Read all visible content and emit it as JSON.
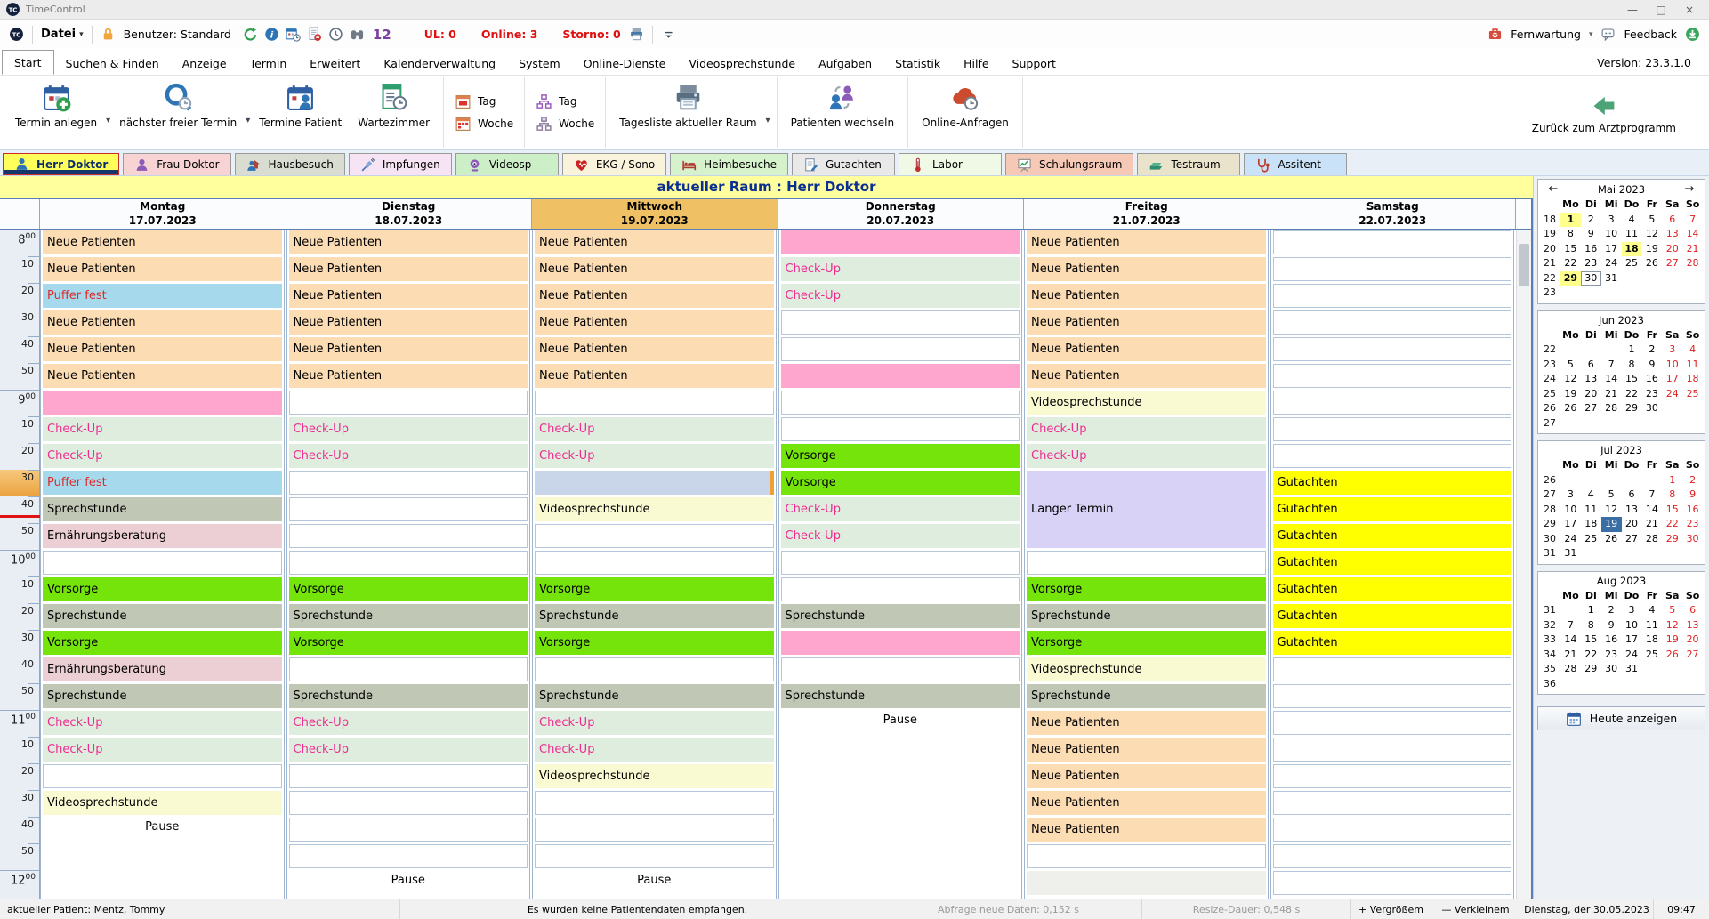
{
  "window": {
    "title": "TimeControl",
    "controls": [
      {
        "name": "minimize",
        "glyph": "—"
      },
      {
        "name": "maximize",
        "glyph": "□"
      },
      {
        "name": "close",
        "glyph": "×"
      }
    ]
  },
  "toolbar": {
    "file_menu": "Datei",
    "user": "Benutzer: Standard",
    "icons": [
      {
        "name": "refresh-icon"
      },
      {
        "name": "info-icon"
      },
      {
        "name": "calendar-clock-icon"
      },
      {
        "name": "document-cancel-icon"
      },
      {
        "name": "clock-icon"
      },
      {
        "name": "binoculars-icon"
      }
    ],
    "twelve": "12",
    "counters": [
      {
        "label": "UL: 0"
      },
      {
        "label": "Online: 3"
      },
      {
        "label": "Storno: 0"
      }
    ],
    "fernwartung": "Fernwartung",
    "feedback": "Feedback"
  },
  "menu": {
    "items": [
      {
        "label": "Start",
        "active": true
      },
      {
        "label": "Suchen & Finden"
      },
      {
        "label": "Anzeige"
      },
      {
        "label": "Termin"
      },
      {
        "label": "Erweitert"
      },
      {
        "label": "Kalenderverwaltung"
      },
      {
        "label": "System"
      },
      {
        "label": "Online-Dienste"
      },
      {
        "label": "Videosprechstunde"
      },
      {
        "label": "Aufgaben"
      },
      {
        "label": "Statistik"
      },
      {
        "label": "Hilfe"
      },
      {
        "label": "Support"
      }
    ],
    "version": "Version: 23.3.1.0"
  },
  "ribbon": {
    "groups": [
      {
        "kind": "big",
        "buttons": [
          {
            "label": "Termin anlegen",
            "icon": "calendar-plus-icon",
            "chevron": true
          },
          {
            "label": "nächster freier Termin",
            "icon": "search-clock-icon",
            "chevron": true
          },
          {
            "label": "Termine Patient",
            "icon": "calendar-person-icon"
          },
          {
            "label": "Wartezimmer",
            "icon": "list-clock-icon"
          }
        ]
      },
      {
        "kind": "small",
        "buttons": [
          {
            "label": "Tag",
            "icon": "cal-red-day-icon"
          },
          {
            "label": "Woche",
            "icon": "cal-red-week-icon"
          }
        ]
      },
      {
        "kind": "small",
        "buttons": [
          {
            "label": "Tag",
            "icon": "org-purple-icon"
          },
          {
            "label": "Woche",
            "icon": "org-gray-icon"
          }
        ]
      },
      {
        "kind": "big",
        "buttons": [
          {
            "label": "Tagesliste aktueller Raum",
            "icon": "printer-big-icon",
            "chevron": true
          }
        ]
      },
      {
        "kind": "big",
        "buttons": [
          {
            "label": "Patienten wechseln",
            "icon": "people-swap-icon"
          }
        ]
      },
      {
        "kind": "big",
        "buttons": [
          {
            "label": "Online-Anfragen",
            "icon": "cloud-red-icon"
          }
        ]
      }
    ],
    "back_button": {
      "label": "Zurück zum Arztprogramm",
      "icon": "arrow-left-green-icon"
    }
  },
  "room_tabs": [
    {
      "label": "Herr Doktor",
      "icon": "person-blue-icon",
      "bg": "#FFFF5C",
      "active": true
    },
    {
      "label": "Frau Doktor",
      "icon": "person-purple-icon",
      "bg": "#F7D3D3"
    },
    {
      "label": "Hausbesuch",
      "icon": "house-person-icon",
      "bg": "#D9DDD1"
    },
    {
      "label": "Impfungen",
      "icon": "syringe-icon",
      "bg": "#F6E3F3"
    },
    {
      "label": "Videosp",
      "icon": "webcam-icon",
      "bg": "#CDEFC8"
    },
    {
      "label": "EKG / Sono",
      "icon": "heart-pulse-icon",
      "bg": "#FAF3DC"
    },
    {
      "label": "Heimbesuche",
      "icon": "bed-icon",
      "bg": "#D6F2CC"
    },
    {
      "label": "Gutachten",
      "icon": "document-pen-icon",
      "bg": "#E9E9E9"
    },
    {
      "label": "Labor",
      "icon": "thermometer-icon",
      "bg": "#EFF9E6"
    },
    {
      "label": "Schulungsraum",
      "icon": "presentation-board-icon",
      "bg": "#F6C9B6"
    },
    {
      "label": "Testraum",
      "icon": "scanner-icon",
      "bg": "#EAE3CB"
    },
    {
      "label": "Assitent",
      "icon": "stethoscope-icon",
      "bg": "#C9E2F8"
    }
  ],
  "banner": "aktueller Raum : Herr Doktor",
  "schedule": {
    "times": [
      {
        "hour": "8",
        "minute": "00"
      },
      {
        "minute": "10"
      },
      {
        "minute": "20"
      },
      {
        "minute": "30"
      },
      {
        "minute": "40"
      },
      {
        "minute": "50"
      },
      {
        "hour": "9",
        "minute": "00"
      },
      {
        "minute": "10"
      },
      {
        "minute": "20"
      },
      {
        "minute": "30",
        "highlight": true
      },
      {
        "minute": "40"
      },
      {
        "minute": "50"
      },
      {
        "hour": "10",
        "minute": "00"
      },
      {
        "minute": "10"
      },
      {
        "minute": "20"
      },
      {
        "minute": "30"
      },
      {
        "minute": "40"
      },
      {
        "minute": "50"
      },
      {
        "hour": "11",
        "minute": "00"
      },
      {
        "minute": "10"
      },
      {
        "minute": "20"
      },
      {
        "minute": "30"
      },
      {
        "minute": "40"
      },
      {
        "minute": "50"
      },
      {
        "hour": "12",
        "minute": "00"
      }
    ],
    "current_time_line": {
      "row": 10,
      "fraction": 0.7
    },
    "appointment_types": {
      "neue": {
        "label": "Neue Patienten",
        "bg": "#FBDCB3",
        "text": "#000000"
      },
      "puffer": {
        "label": "Puffer fest",
        "bg": "#A6D9EC",
        "text": "#DD2A2A"
      },
      "checkup": {
        "label": "Check-Up",
        "bg": "#DFEDDF",
        "text": "#EE2C90"
      },
      "sprech": {
        "label": "Sprechstunde",
        "bg": "#C1C7B5",
        "text": "#000000"
      },
      "ernaehrung": {
        "label": "Ernährungsberatung",
        "bg": "#ECCFD4",
        "text": "#000000"
      },
      "vorsorge": {
        "label": "Vorsorge",
        "bg": "#74E40B",
        "text": "#000000"
      },
      "video": {
        "label": "Videosprechstunde",
        "bg": "#FAFAD2",
        "text": "#000000"
      },
      "gutachten": {
        "label": "Gutachten",
        "bg": "#FFFF00",
        "text": "#000000"
      },
      "langer": {
        "label": "Langer Termin",
        "bg": "#D8D2F6",
        "text": "#000000"
      },
      "pink": {
        "label": "",
        "bg": "#FFA6CF",
        "text": "#000000"
      },
      "selected": {
        "label": "",
        "bg": "#C9D5E9",
        "text": "#000000"
      },
      "grayempty": {
        "label": "",
        "bg": "#EFEFEC",
        "text": "#000000"
      },
      "pause": {
        "label": "Pause",
        "bg": "#FFFFFF",
        "text": "#000000"
      },
      "empty": {
        "label": "",
        "bg": "#FFFFFF",
        "text": "#000000"
      }
    },
    "days": [
      {
        "name": "Montag",
        "date": "17.07.2023",
        "slots": [
          "neue",
          "neue",
          "puffer",
          "neue",
          "neue",
          "neue",
          "pink",
          "checkup",
          "checkup",
          "puffer",
          "sprech",
          "ernaehrung",
          "empty",
          "vorsorge",
          "sprech",
          "vorsorge",
          "ernaehrung",
          "sprech",
          "checkup",
          "checkup",
          "empty",
          "video",
          {
            "t": "pause",
            "span": 3
          }
        ]
      },
      {
        "name": "Dienstag",
        "date": "18.07.2023",
        "slots": [
          "neue",
          "neue",
          "neue",
          "neue",
          "neue",
          "neue",
          "empty",
          "checkup",
          "checkup",
          "empty",
          "empty",
          "empty",
          "empty",
          "vorsorge",
          "sprech",
          "vorsorge",
          "empty",
          "sprech",
          "checkup",
          "checkup",
          "empty",
          "empty",
          "empty",
          "empty",
          "pause"
        ]
      },
      {
        "name": "Mittwoch",
        "date": "19.07.2023",
        "highlight": true,
        "slots": [
          "neue",
          "neue",
          "neue",
          "neue",
          "neue",
          "neue",
          "empty",
          "checkup",
          "checkup",
          "selected",
          "video",
          "empty",
          "empty",
          "vorsorge",
          "sprech",
          "vorsorge",
          "empty",
          "sprech",
          "checkup",
          "checkup",
          "video",
          "empty",
          "empty",
          "empty",
          "pause"
        ]
      },
      {
        "name": "Donnerstag",
        "date": "20.07.2023",
        "slots": [
          "pink",
          "checkup",
          "checkup",
          "empty",
          "empty",
          "pink",
          "empty",
          "empty",
          "vorsorge",
          "vorsorge",
          "checkup",
          "checkup",
          "empty",
          "empty",
          "sprech",
          "pink",
          "empty",
          "sprech",
          {
            "t": "pause",
            "span": 7
          }
        ]
      },
      {
        "name": "Freitag",
        "date": "21.07.2023",
        "slots": [
          "neue",
          "neue",
          "neue",
          "neue",
          "neue",
          "neue",
          "video",
          "checkup",
          "checkup",
          {
            "t": "langer",
            "span": 3
          },
          "empty",
          "vorsorge",
          "sprech",
          "vorsorge",
          "video",
          "sprech",
          "neue",
          "neue",
          "neue",
          "neue",
          "neue",
          "empty",
          "grayempty"
        ]
      },
      {
        "name": "Samstag",
        "date": "22.07.2023",
        "slots": [
          "empty",
          "empty",
          "empty",
          "empty",
          "empty",
          "empty",
          "empty",
          "empty",
          "empty",
          "gutachten",
          "gutachten",
          "gutachten",
          "gutachten",
          "gutachten",
          "gutachten",
          "gutachten",
          "empty",
          "empty",
          "empty",
          "empty",
          "empty",
          "empty",
          "empty",
          "empty",
          "empty"
        ]
      }
    ]
  },
  "minicalendars": [
    {
      "title": "Mai 2023",
      "nav": true,
      "day_headers": [
        "Mo",
        "Di",
        "Mi",
        "Do",
        "Fr",
        "Sa",
        "So"
      ],
      "weeks": [
        {
          "num": "18",
          "days": [
            "1h",
            "2",
            "3",
            "4",
            "5",
            "6w",
            "7w"
          ]
        },
        {
          "num": "19",
          "days": [
            "8",
            "9",
            "10",
            "11",
            "12",
            "13w",
            "14w"
          ]
        },
        {
          "num": "20",
          "days": [
            "15",
            "16",
            "17",
            "18h",
            "19",
            "20w",
            "21w"
          ]
        },
        {
          "num": "21",
          "days": [
            "22",
            "23",
            "24",
            "25",
            "26",
            "27w",
            "28w"
          ]
        },
        {
          "num": "22",
          "days": [
            "29h",
            "30t",
            "31",
            "",
            "",
            "",
            ""
          ]
        },
        {
          "num": "23",
          "days": [
            "",
            "",
            "",
            "",
            "",
            "",
            ""
          ]
        }
      ]
    },
    {
      "title": "Jun 2023",
      "nav": false,
      "day_headers": [
        "Mo",
        "Di",
        "Mi",
        "Do",
        "Fr",
        "Sa",
        "So"
      ],
      "weeks": [
        {
          "num": "22",
          "days": [
            "",
            "",
            "",
            "1",
            "2",
            "3w",
            "4w"
          ]
        },
        {
          "num": "23",
          "days": [
            "5",
            "6",
            "7",
            "8",
            "9",
            "10w",
            "11w"
          ]
        },
        {
          "num": "24",
          "days": [
            "12",
            "13",
            "14",
            "15",
            "16",
            "17w",
            "18w"
          ]
        },
        {
          "num": "25",
          "days": [
            "19",
            "20",
            "21",
            "22",
            "23",
            "24w",
            "25w"
          ]
        },
        {
          "num": "26",
          "days": [
            "26",
            "27",
            "28",
            "29",
            "30",
            "",
            ""
          ]
        },
        {
          "num": "27",
          "days": [
            "",
            "",
            "",
            "",
            "",
            "",
            ""
          ]
        }
      ]
    },
    {
      "title": "Jul 2023",
      "nav": false,
      "day_headers": [
        "Mo",
        "Di",
        "Mi",
        "Do",
        "Fr",
        "Sa",
        "So"
      ],
      "weeks": [
        {
          "num": "26",
          "days": [
            "",
            "",
            "",
            "",
            "",
            "1w",
            "2w"
          ]
        },
        {
          "num": "27",
          "days": [
            "3",
            "4",
            "5",
            "6",
            "7",
            "8w",
            "9w"
          ]
        },
        {
          "num": "28",
          "days": [
            "10",
            "11",
            "12",
            "13",
            "14",
            "15w",
            "16w"
          ]
        },
        {
          "num": "29",
          "days": [
            "17",
            "18",
            "19s",
            "20",
            "21",
            "22w",
            "23w"
          ]
        },
        {
          "num": "30",
          "days": [
            "24",
            "25",
            "26",
            "27",
            "28",
            "29w",
            "30w"
          ]
        },
        {
          "num": "31",
          "days": [
            "31",
            "",
            "",
            "",
            "",
            "",
            ""
          ]
        }
      ]
    },
    {
      "title": "Aug 2023",
      "nav": false,
      "day_headers": [
        "Mo",
        "Di",
        "Mi",
        "Do",
        "Fr",
        "Sa",
        "So"
      ],
      "weeks": [
        {
          "num": "31",
          "days": [
            "",
            "1",
            "2",
            "3",
            "4",
            "5w",
            "6w"
          ]
        },
        {
          "num": "32",
          "days": [
            "7",
            "8",
            "9",
            "10",
            "11",
            "12w",
            "13w"
          ]
        },
        {
          "num": "33",
          "days": [
            "14",
            "15",
            "16",
            "17",
            "18",
            "19w",
            "20w"
          ]
        },
        {
          "num": "34",
          "days": [
            "21",
            "22",
            "23",
            "24",
            "25",
            "26w",
            "27w"
          ]
        },
        {
          "num": "35",
          "days": [
            "28",
            "29",
            "30",
            "31",
            "",
            "",
            ""
          ]
        },
        {
          "num": "36",
          "days": [
            "",
            "",
            "",
            "",
            "",
            "",
            ""
          ]
        }
      ]
    }
  ],
  "today_button": {
    "label": "Heute anzeigen",
    "icon": "calendar-today-icon"
  },
  "statusbar": {
    "patient": "aktueller Patient: Mentz, Tommy",
    "message": "Es wurden keine Patientendaten empfangen.",
    "query_time": "Abfrage neue Daten: 0,152 s",
    "resize_time": "Resize-Dauer: 0,548 s",
    "zoom_in_glyph": "+",
    "zoom_in": "Vergrößem",
    "zoom_out_glyph": "—",
    "zoom_out": "Verkleinem",
    "date": "Dienstag, der 30.05.2023",
    "time": "09:47"
  }
}
